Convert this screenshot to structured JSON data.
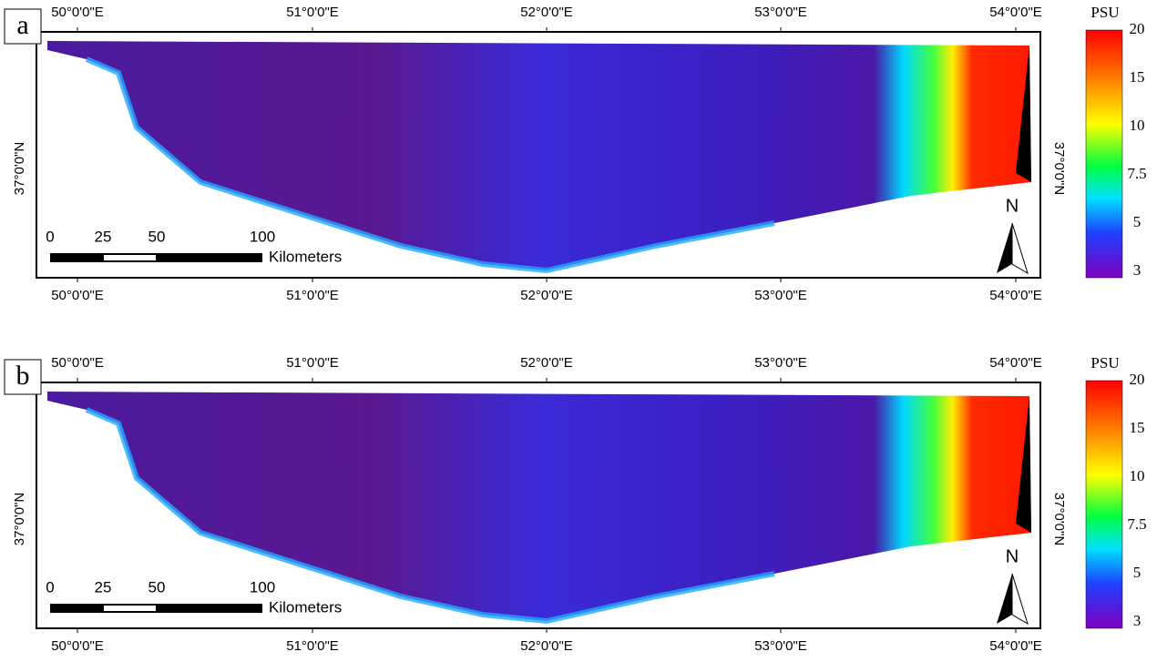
{
  "panels": [
    {
      "label": "a",
      "lon_ticks_top": [
        "50°0'0\"E",
        "51°0'0\"E",
        "52°0'0\"E",
        "53°0'0\"E",
        "54°0'0\"E"
      ],
      "lon_ticks_bottom": [
        "50°0'0\"E",
        "51°0'0\"E",
        "52°0'0\"E",
        "53°0'0\"E",
        "54°0'0\"E"
      ],
      "lat_left": "37°0'0\"N",
      "lat_right": "37°0'0\"N",
      "scale_labels": [
        "0",
        "25",
        "50",
        "100"
      ],
      "scale_unit": "Kilometers",
      "north": "N",
      "colorbar": {
        "title": "PSU",
        "ticks": [
          20,
          15,
          10,
          7.5,
          5,
          3
        ]
      }
    },
    {
      "label": "b",
      "lon_ticks_top": [
        "50°0'0\"E",
        "51°0'0\"E",
        "52°0'0\"E",
        "53°0'0\"E",
        "54°0'0\"E"
      ],
      "lon_ticks_bottom": [
        "50°0'0\"E",
        "51°0'0\"E",
        "52°0'0\"E",
        "53°0'0\"E",
        "54°0'0\"E"
      ],
      "lat_left": "37°0'0\"N",
      "lat_right": "37°0'0\"N",
      "scale_labels": [
        "0",
        "25",
        "50",
        "100"
      ],
      "scale_unit": "Kilometers",
      "north": "N",
      "colorbar": {
        "title": "PSU",
        "ticks": [
          20,
          15,
          10,
          7.5,
          5,
          3
        ]
      }
    }
  ]
}
